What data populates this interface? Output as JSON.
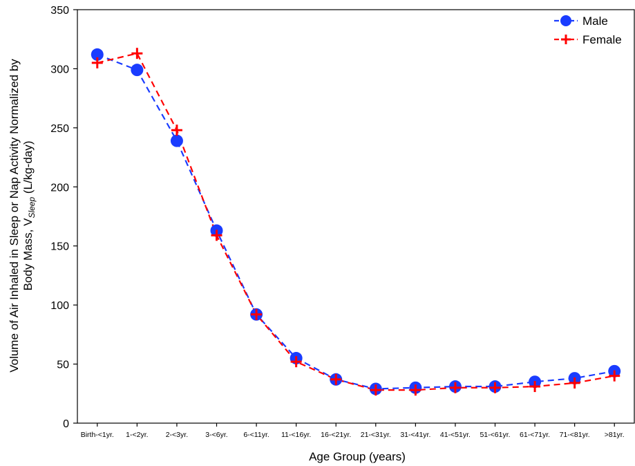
{
  "chart_data": {
    "type": "line",
    "title": "",
    "xlabel": "Age Group (years)",
    "ylabel_line1": "Volume of Air Inhaled in Sleep or Nap Activity Normalized by",
    "ylabel_line2_prefix": "Body Mass, V",
    "ylabel_line2_sub": "Sleep",
    "ylabel_line2_suffix": " (L/kg-day)",
    "ylim": [
      0,
      350
    ],
    "yticks": [
      0,
      50,
      100,
      150,
      200,
      250,
      300,
      350
    ],
    "categories": [
      "Birth-<1yr.",
      "1-<2yr.",
      "2-<3yr.",
      "3-<6yr.",
      "6-<11yr.",
      "11-<16yr.",
      "16-<21yr.",
      "21-<31yr.",
      "31-<41yr.",
      "41-<51yr.",
      "51-<61yr.",
      "61-<71yr.",
      "71-<81yr.",
      ">81yr."
    ],
    "grid": false,
    "legend_position": "top-right",
    "series": [
      {
        "name": "Male",
        "color": "#1a3cff",
        "marker": "circle",
        "values": [
          312,
          299,
          239,
          163,
          92,
          55,
          37,
          29,
          30,
          31,
          31,
          35,
          38,
          44
        ]
      },
      {
        "name": "Female",
        "color": "#ff0000",
        "marker": "plus",
        "values": [
          305,
          313,
          248,
          159,
          92,
          52,
          37,
          28,
          28,
          30,
          30,
          31,
          34,
          40
        ]
      }
    ]
  }
}
